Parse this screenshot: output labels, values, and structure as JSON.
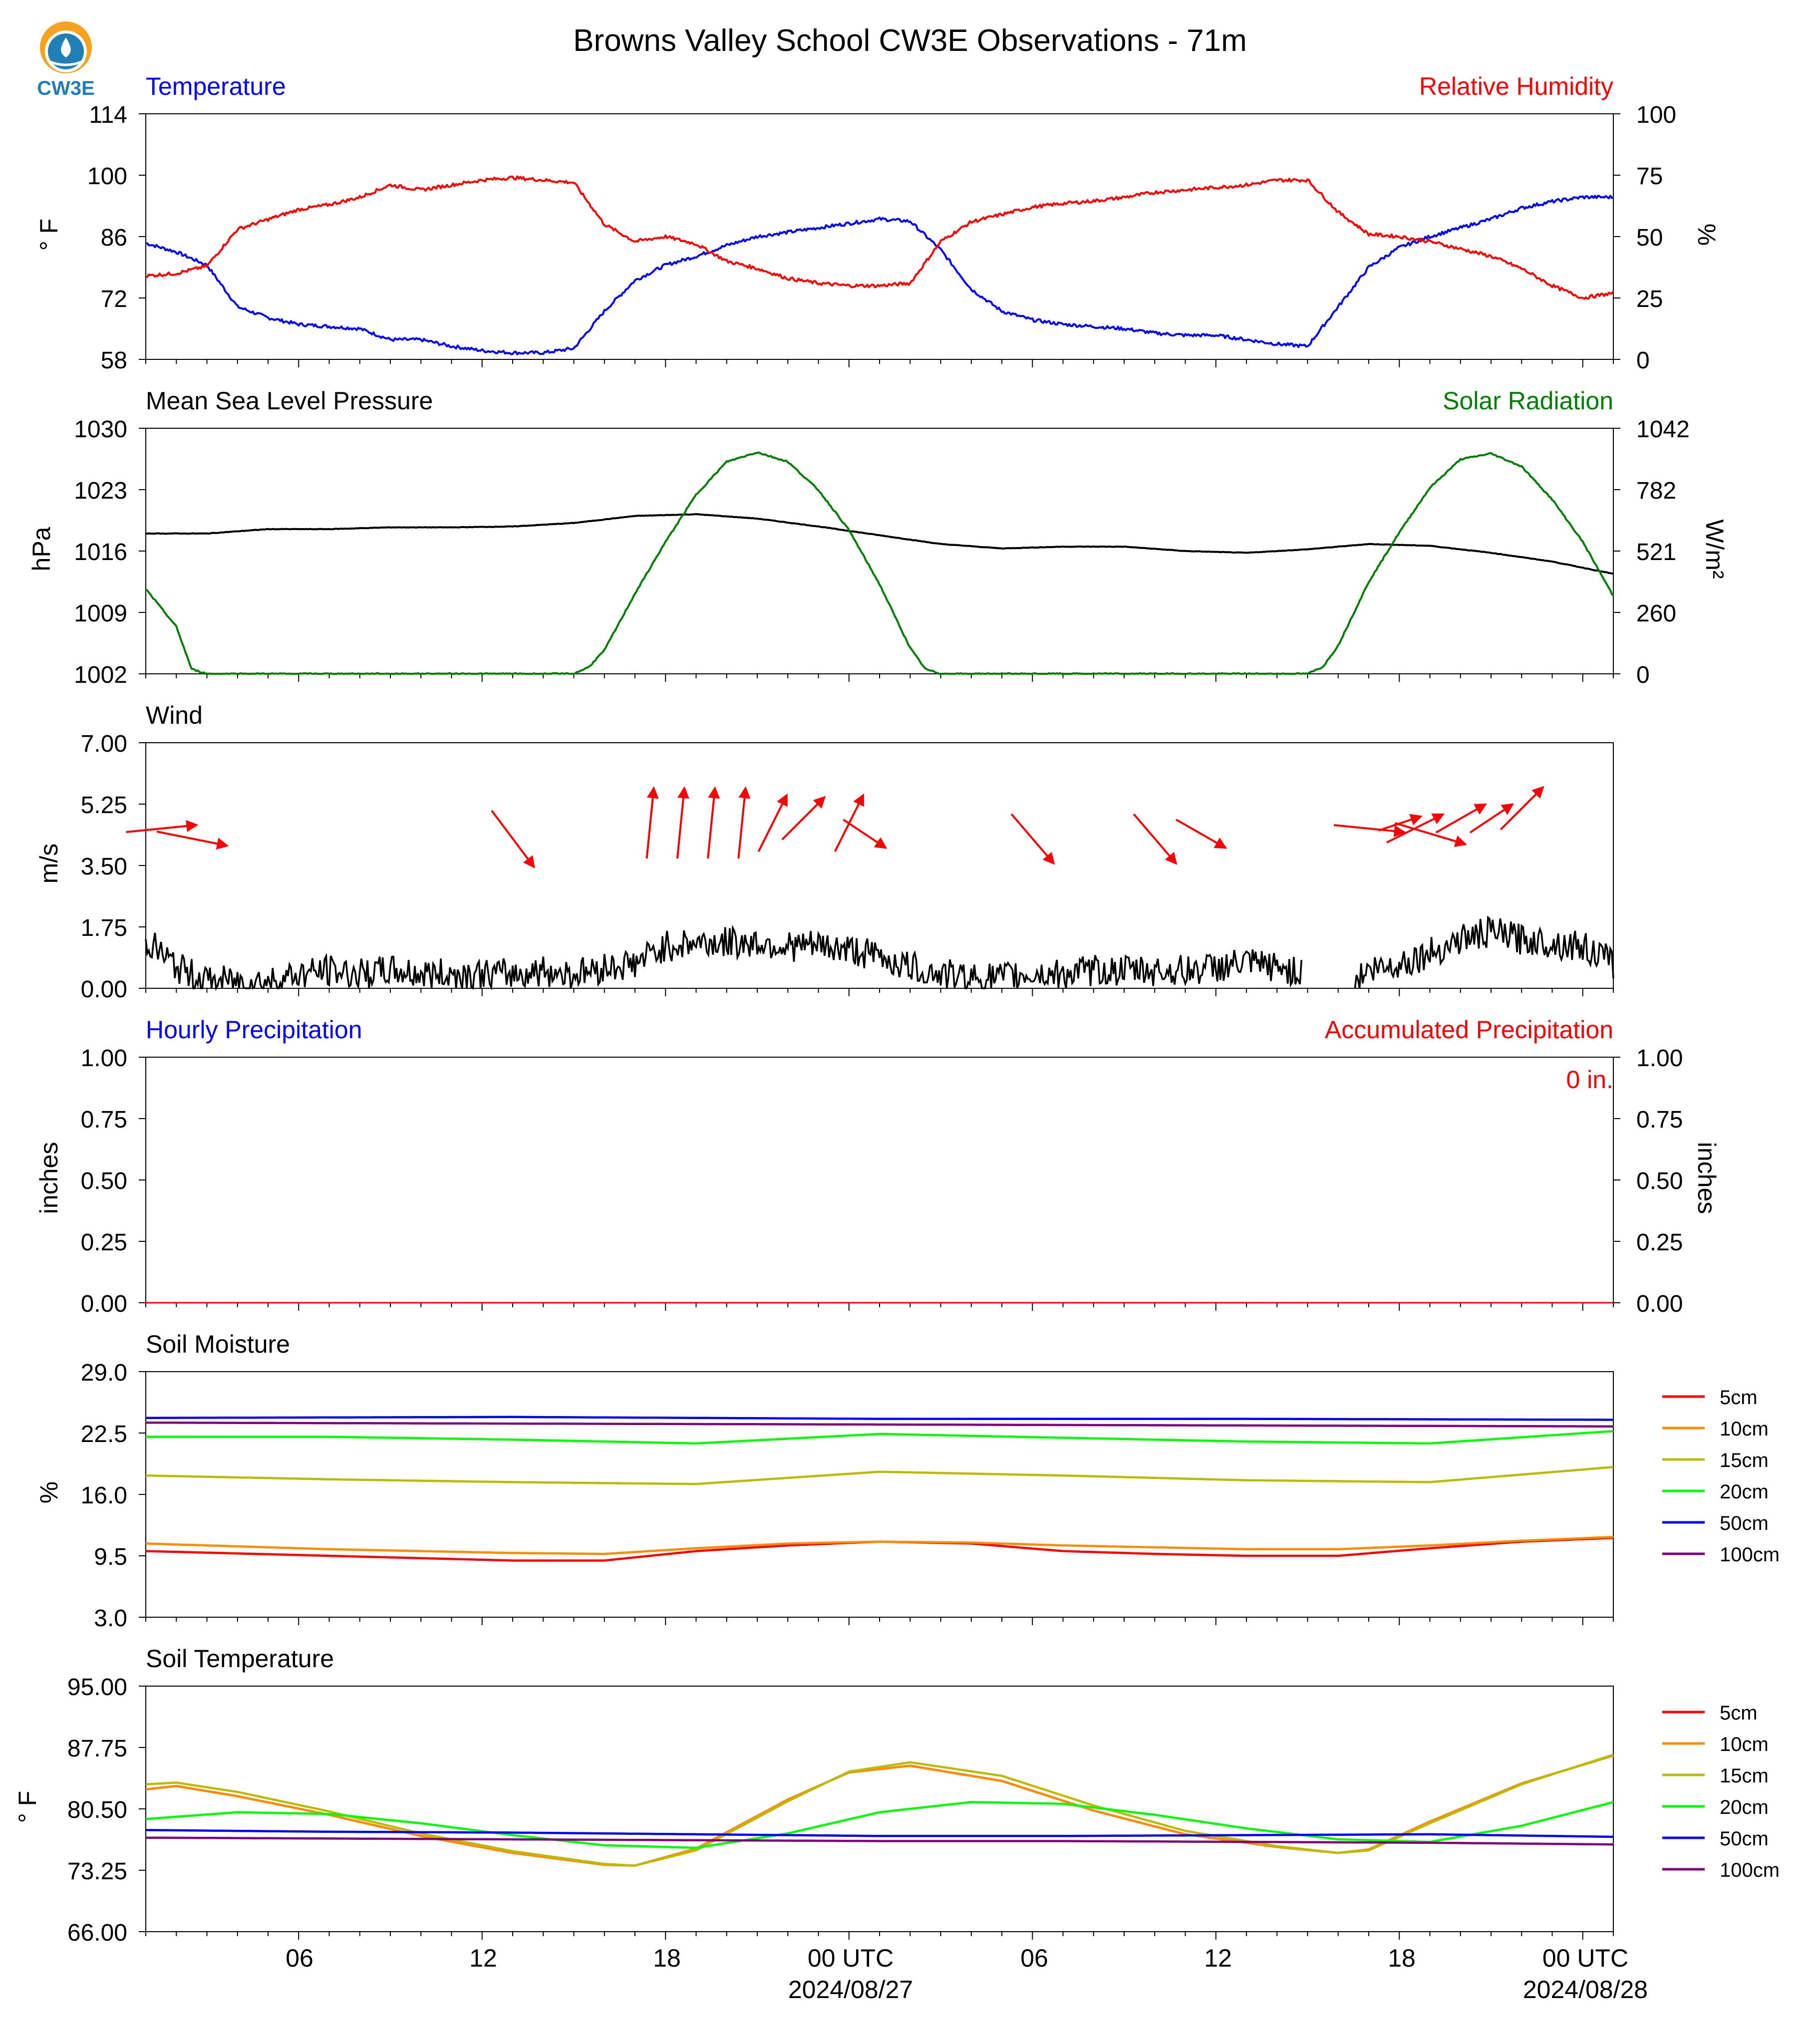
{
  "title": "Browns Valley School CW3E Observations - 71m",
  "logo_text": "CW3E",
  "x_ticks": [
    "06",
    "12",
    "18",
    "00 UTC",
    "06",
    "12",
    "18",
    "00 UTC"
  ],
  "date_labels": [
    "2024/08/27",
    "2024/08/28"
  ],
  "colors": {
    "temperature": "#0000ff",
    "humidity": "#ff0000",
    "solar": "#008000",
    "pressure": "#000000",
    "wind_arrow": "#ff0000",
    "accent_hourly": "#0000ff",
    "accent_accum": "#ff0000"
  },
  "panels": {
    "temp_rh": {
      "left_title": "Temperature",
      "right_title": "Relative Humidity",
      "ylabel_left": "° F",
      "ylabel_right": "%",
      "yticks_left": [
        "114",
        "100",
        "86",
        "72",
        "58"
      ],
      "yticks_right": [
        "100",
        "75",
        "50",
        "25",
        "0"
      ]
    },
    "pressure_solar": {
      "left_title": "Mean Sea Level Pressure",
      "right_title": "Solar Radiation",
      "ylabel_left": "hPa",
      "ylabel_right": "W/m²",
      "yticks_left": [
        "1030",
        "1023",
        "1016",
        "1009",
        "1002"
      ],
      "yticks_right": [
        "1042",
        "782",
        "521",
        "260",
        "0"
      ]
    },
    "wind": {
      "left_title": "Wind",
      "ylabel_left": "m/s",
      "yticks_left": [
        "7.00",
        "5.25",
        "3.50",
        "1.75",
        "0.00"
      ]
    },
    "precip": {
      "left_title": "Hourly Precipitation",
      "right_title": "Accumulated Precipitation",
      "ylabel_left": "inches",
      "ylabel_right": "inches",
      "yticks_left": [
        "1.00",
        "0.75",
        "0.50",
        "0.25",
        "0.00"
      ],
      "yticks_right": [
        "1.00",
        "0.75",
        "0.50",
        "0.25",
        "0.00"
      ],
      "accum_label": "0 in."
    },
    "soil_moisture": {
      "left_title": "Soil Moisture",
      "ylabel_left": "%",
      "yticks_left": [
        "29.0",
        "22.5",
        "16.0",
        "9.5",
        "3.0"
      ],
      "legend": [
        "5cm",
        "10cm",
        "15cm",
        "20cm",
        "50cm",
        "100cm"
      ]
    },
    "soil_temp": {
      "left_title": "Soil Temperature",
      "ylabel_left": "° F",
      "yticks_left": [
        "95.00",
        "87.75",
        "80.50",
        "73.25",
        "66.00"
      ],
      "legend": [
        "5cm",
        "10cm",
        "15cm",
        "20cm",
        "50cm",
        "100cm"
      ]
    }
  },
  "chart_data": [
    {
      "type": "line",
      "panel": "temp_rh",
      "x_unit": "hours since 2024-08-26 01 UTC",
      "ylim_left": [
        58,
        114
      ],
      "ylim_right": [
        0,
        100
      ],
      "series": [
        {
          "name": "Temperature",
          "axis": "left",
          "color": "#0000ff",
          "x": [
            0,
            1,
            2,
            3,
            4,
            5,
            6,
            7,
            8,
            9,
            10,
            11,
            12,
            13,
            14,
            15,
            16,
            17,
            18,
            19,
            20,
            21,
            22,
            23,
            24,
            25,
            26,
            27,
            28,
            29,
            30,
            31,
            32,
            33,
            34,
            35,
            36,
            37,
            38,
            39,
            40,
            41,
            42,
            43,
            44,
            45,
            46,
            47,
            48
          ],
          "y": [
            84.5,
            82.5,
            79.5,
            70,
            67.5,
            66,
            65.5,
            65,
            62.5,
            62.5,
            61,
            60,
            59.5,
            59.5,
            60.5,
            69,
            76,
            79.5,
            81.5,
            84,
            86,
            87,
            88,
            89,
            90,
            89.5,
            83,
            74,
            69,
            67,
            66,
            65.5,
            65,
            64,
            63.5,
            63.5,
            62.5,
            61.5,
            61,
            70,
            79,
            83.5,
            86,
            88,
            90,
            92.5,
            94,
            95,
            95
          ]
        },
        {
          "name": "Relative Humidity",
          "axis": "right",
          "color": "#ff0000",
          "x": [
            0,
            1,
            2,
            3,
            4,
            5,
            6,
            7,
            8,
            9,
            10,
            11,
            12,
            13,
            14,
            15,
            16,
            17,
            18,
            19,
            20,
            21,
            22,
            23,
            24,
            25,
            26,
            27,
            28,
            29,
            30,
            31,
            32,
            33,
            34,
            35,
            36,
            37,
            38,
            39,
            40,
            41,
            42,
            43,
            44,
            45,
            46,
            47,
            48
          ],
          "y": [
            34,
            35,
            38,
            53,
            57,
            61,
            63,
            66,
            71,
            69,
            71,
            73,
            74,
            73,
            72,
            55,
            48,
            50,
            47,
            40,
            37,
            33,
            31,
            30,
            30,
            31,
            48,
            56,
            59,
            62,
            63.5,
            64.5,
            66,
            68,
            69,
            70,
            71,
            73,
            73,
            60,
            51,
            50,
            48,
            45,
            42,
            37,
            30,
            25,
            27
          ]
        }
      ]
    },
    {
      "type": "line",
      "panel": "pressure_solar",
      "x_unit": "hours since 2024-08-26 01 UTC",
      "ylim_left": [
        1002,
        1030
      ],
      "ylim_right": [
        0,
        1042
      ],
      "series": [
        {
          "name": "Mean Sea Level Pressure",
          "axis": "left",
          "color": "#000000",
          "x": [
            0,
            2,
            4,
            6,
            8,
            10,
            12,
            14,
            16,
            18,
            20,
            22,
            24,
            26,
            28,
            30,
            32,
            34,
            36,
            38,
            40,
            42,
            44,
            46,
            48
          ],
          "y": [
            1018.0,
            1018.0,
            1018.5,
            1018.5,
            1018.7,
            1018.7,
            1018.8,
            1019.2,
            1020.0,
            1020.2,
            1019.7,
            1018.8,
            1017.8,
            1016.8,
            1016.3,
            1016.5,
            1016.5,
            1016.0,
            1015.8,
            1016.2,
            1016.8,
            1016.6,
            1015.8,
            1014.8,
            1013.4
          ]
        },
        {
          "name": "Solar Radiation",
          "axis": "right",
          "color": "#008000",
          "x": [
            0,
            1,
            1.5,
            2,
            14,
            14.5,
            15,
            16,
            17,
            18,
            19,
            20,
            21,
            22,
            23,
            24,
            25,
            25.5,
            26,
            38,
            38.5,
            39,
            40,
            41,
            42,
            43,
            44,
            45,
            46,
            47,
            48
          ],
          "y": [
            360,
            200,
            20,
            0,
            0,
            30,
            100,
            340,
            560,
            760,
            900,
            940,
            900,
            780,
            610,
            380,
            110,
            20,
            0,
            0,
            30,
            120,
            390,
            600,
            790,
            910,
            935,
            880,
            740,
            560,
            330
          ]
        }
      ]
    },
    {
      "type": "line",
      "panel": "wind",
      "x_unit": "hours since 2024-08-26 01 UTC",
      "ylim": [
        0,
        7
      ],
      "series": [
        {
          "name": "Wind",
          "color": "#000000",
          "x": [
            0,
            1,
            2,
            3,
            4,
            5,
            6,
            7,
            8,
            9,
            10,
            11,
            12,
            13,
            14,
            15,
            16,
            17,
            18,
            19,
            20,
            21,
            22,
            23,
            24,
            25,
            26,
            27,
            28,
            29,
            30,
            31,
            32,
            33,
            34,
            35,
            36,
            37,
            38,
            39,
            40,
            41,
            42,
            43,
            44,
            45,
            46,
            47,
            48
          ],
          "y": [
            1.4,
            0.6,
            0.2,
            0.2,
            0.2,
            0.4,
            0.5,
            0.4,
            0.5,
            0.4,
            0.4,
            0.4,
            0.4,
            0.5,
            0.4,
            0.6,
            0.7,
            1.2,
            1.3,
            1.3,
            1.3,
            1.2,
            1.2,
            1.1,
            0.9,
            0.6,
            0.4,
            0.3,
            0.3,
            0.4,
            0.4,
            0.5,
            0.5,
            0.5,
            0.5,
            0.6,
            0.7,
            0.6,
            0.4,
            0.0,
            0.5,
            0.7,
            1.0,
            1.4,
            1.6,
            1.4,
            1.3,
            1.2,
            0.7
          ]
        }
      ],
      "arrows": {
        "x": [
          0.5,
          1.5,
          12,
          16.5,
          17.5,
          18.5,
          19.5,
          20.5,
          21.5,
          23,
          23.5,
          29,
          33,
          34.5,
          40,
          41,
          41.5,
          42,
          43,
          44,
          45
        ],
        "u": [
          1.0,
          1.0,
          0.6,
          0.1,
          0.1,
          0.1,
          0.1,
          0.4,
          0.6,
          0.4,
          0.6,
          0.6,
          0.6,
          0.7,
          1.0,
          0.6,
          0.8,
          1.0,
          0.7,
          0.6,
          0.6
        ],
        "v": [
          0.1,
          -0.2,
          -0.8,
          1.0,
          1.0,
          1.0,
          1.0,
          0.8,
          0.6,
          0.8,
          -0.4,
          -0.7,
          -0.7,
          -0.4,
          -0.1,
          0.2,
          0.4,
          -0.3,
          0.4,
          0.4,
          0.6
        ]
      }
    },
    {
      "type": "line",
      "panel": "precip",
      "x_unit": "hours since 2024-08-26 01 UTC",
      "ylim": [
        0,
        1
      ],
      "series": [
        {
          "name": "Hourly Precipitation",
          "color": "#0000ff",
          "x": [
            0,
            48
          ],
          "y": [
            0,
            0
          ]
        },
        {
          "name": "Accumulated Precipitation",
          "color": "#ff0000",
          "x": [
            0,
            48
          ],
          "y": [
            0,
            0
          ]
        }
      ]
    },
    {
      "type": "line",
      "panel": "soil_moisture",
      "x_unit": "hours since 2024-08-26 01 UTC",
      "ylim": [
        3,
        29
      ],
      "series": [
        {
          "name": "5cm",
          "color": "#ff0000",
          "x": [
            0,
            6,
            12,
            15,
            18,
            21,
            24,
            27,
            30,
            33,
            36,
            39,
            42,
            45,
            48
          ],
          "y": [
            10.0,
            9.5,
            9.0,
            9.0,
            10.0,
            10.6,
            11.0,
            10.8,
            10.0,
            9.7,
            9.5,
            9.5,
            10.3,
            11.0,
            11.4
          ]
        },
        {
          "name": "10cm",
          "color": "#ff8c00",
          "x": [
            0,
            6,
            12,
            15,
            18,
            21,
            24,
            27,
            30,
            33,
            36,
            39,
            42,
            45,
            48
          ],
          "y": [
            10.8,
            10.2,
            9.8,
            9.7,
            10.3,
            10.8,
            11.0,
            10.9,
            10.6,
            10.4,
            10.2,
            10.2,
            10.6,
            11.1,
            11.5
          ]
        },
        {
          "name": "15cm",
          "color": "#bbbb00",
          "x": [
            0,
            6,
            12,
            18,
            24,
            30,
            36,
            42,
            48
          ],
          "y": [
            18.0,
            17.6,
            17.3,
            17.1,
            18.4,
            18.0,
            17.5,
            17.3,
            18.9
          ]
        },
        {
          "name": "20cm",
          "color": "#00ff00",
          "x": [
            0,
            6,
            12,
            18,
            24,
            30,
            36,
            42,
            48
          ],
          "y": [
            22.1,
            22.1,
            21.8,
            21.4,
            22.4,
            22.0,
            21.6,
            21.4,
            22.7
          ]
        },
        {
          "name": "50cm",
          "color": "#0000ff",
          "x": [
            0,
            12,
            24,
            36,
            48
          ],
          "y": [
            24.1,
            24.2,
            24.0,
            24.0,
            23.9
          ]
        },
        {
          "name": "100cm",
          "color": "#800080",
          "x": [
            0,
            12,
            24,
            36,
            48
          ],
          "y": [
            23.6,
            23.5,
            23.4,
            23.3,
            23.2
          ]
        }
      ]
    },
    {
      "type": "line",
      "panel": "soil_temp",
      "x_unit": "hours since 2024-08-26 01 UTC",
      "ylim": [
        66,
        95
      ],
      "series": [
        {
          "name": "5cm",
          "color": "#ff0000",
          "x": [
            0,
            1,
            3,
            6,
            9,
            12,
            15,
            16,
            18,
            21,
            23,
            25,
            28,
            31,
            34,
            37,
            39,
            40,
            42,
            45,
            48
          ],
          "y": [
            82.8,
            83.2,
            82.0,
            79.8,
            77.3,
            75.3,
            73.9,
            73.8,
            75.8,
            81.6,
            84.8,
            85.6,
            83.8,
            80.3,
            77.5,
            76.0,
            75.3,
            75.7,
            79.0,
            83.5,
            86.8
          ]
        },
        {
          "name": "10cm",
          "color": "#ff8c00",
          "x": [
            0,
            1,
            3,
            6,
            9,
            12,
            15,
            16,
            18,
            21,
            23,
            25,
            28,
            31,
            34,
            37,
            39,
            40,
            42,
            45,
            48
          ],
          "y": [
            82.8,
            83.2,
            82.0,
            79.8,
            77.3,
            75.3,
            73.9,
            73.8,
            75.8,
            81.6,
            84.8,
            85.6,
            83.8,
            80.3,
            77.5,
            76.0,
            75.3,
            75.7,
            79.0,
            83.5,
            86.8
          ]
        },
        {
          "name": "15cm",
          "color": "#bbbb00",
          "x": [
            0,
            1,
            3,
            6,
            9,
            12,
            15,
            16,
            18,
            21,
            23,
            25,
            28,
            31,
            34,
            37,
            39,
            40,
            42,
            45,
            48
          ],
          "y": [
            83.4,
            83.6,
            82.5,
            80.2,
            77.6,
            75.5,
            74.0,
            73.8,
            75.6,
            81.4,
            84.9,
            86.0,
            84.4,
            80.9,
            77.9,
            76.1,
            75.3,
            75.6,
            78.8,
            83.4,
            86.9
          ]
        },
        {
          "name": "20cm",
          "color": "#00ff00",
          "x": [
            0,
            3,
            6,
            9,
            12,
            15,
            18,
            21,
            24,
            27,
            30,
            33,
            36,
            39,
            42,
            45,
            48
          ],
          "y": [
            79.3,
            80.1,
            79.9,
            78.8,
            77.4,
            76.2,
            75.9,
            77.6,
            80.1,
            81.3,
            81.1,
            79.8,
            78.2,
            76.9,
            76.6,
            78.5,
            81.3
          ]
        },
        {
          "name": "50cm",
          "color": "#0000ff",
          "x": [
            0,
            6,
            12,
            18,
            24,
            30,
            36,
            42,
            48
          ],
          "y": [
            78.0,
            77.8,
            77.7,
            77.5,
            77.3,
            77.3,
            77.4,
            77.5,
            77.2
          ]
        },
        {
          "name": "100cm",
          "color": "#800080",
          "x": [
            0,
            6,
            12,
            18,
            24,
            30,
            36,
            42,
            48
          ],
          "y": [
            77.1,
            77.0,
            76.9,
            76.8,
            76.7,
            76.7,
            76.6,
            76.5,
            76.3
          ]
        }
      ]
    }
  ]
}
